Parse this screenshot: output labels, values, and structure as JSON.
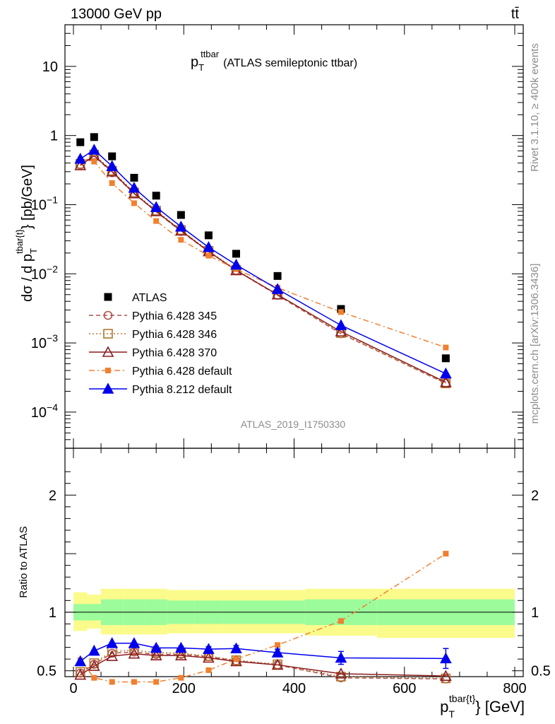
{
  "header": {
    "left": "13000 GeV pp",
    "right": "tt̄"
  },
  "side_labels": {
    "rivet": "Rivet 3.1.10, ≥ 400k events",
    "mcplots": "mcplots.cern.ch [arXiv:1306.3436]"
  },
  "chart_data": [
    {
      "type": "line",
      "panel": "main",
      "title_main": "p",
      "title_sub": "T",
      "title_sup": "ttbar",
      "title_rest": "(ATLAS semileptonic ttbar)",
      "ylabel": "dσ / d p_T^{tbar{t}} [pb/GeV]",
      "watermark": "ATLAS_2019_I1750330",
      "yscale": "log",
      "ylim": [
        3e-05,
        40
      ],
      "xlim": [
        -20,
        820
      ],
      "yticks": [
        {
          "v": 10,
          "label": "10"
        },
        {
          "v": 1,
          "label": "1"
        },
        {
          "v": 0.1,
          "base": "10",
          "exp": "−1"
        },
        {
          "v": 0.01,
          "base": "10",
          "exp": "−2"
        },
        {
          "v": 0.001,
          "base": "10",
          "exp": "−3"
        },
        {
          "v": 0.0001,
          "base": "10",
          "exp": "−4"
        }
      ],
      "x": [
        12.5,
        37.5,
        70,
        110,
        150,
        195,
        245,
        295,
        370,
        485,
        675
      ],
      "series": [
        {
          "name": "ATLAS",
          "color": "#000000",
          "marker": "square",
          "line": "none",
          "values": [
            0.8,
            0.95,
            0.5,
            0.245,
            0.135,
            0.071,
            0.036,
            0.0195,
            0.0093,
            0.0031,
            0.0006
          ]
        },
        {
          "name": "Pythia 6.428 345",
          "color": "#b05050",
          "marker": "circle-open",
          "line": "dashed",
          "values": [
            0.375,
            0.51,
            0.29,
            0.145,
            0.079,
            0.041,
            0.021,
            0.0112,
            0.0049,
            0.00136,
            0.00026
          ]
        },
        {
          "name": "Pythia 6.428 346",
          "color": "#b07830",
          "marker": "square-open",
          "line": "dotted",
          "values": [
            0.39,
            0.53,
            0.31,
            0.15,
            0.082,
            0.043,
            0.0215,
            0.0114,
            0.005,
            0.00139,
            0.00026
          ]
        },
        {
          "name": "Pythia 6.428 370",
          "color": "#8c1c20",
          "marker": "triangle-open",
          "line": "solid",
          "values": [
            0.37,
            0.51,
            0.3,
            0.145,
            0.08,
            0.042,
            0.021,
            0.0112,
            0.005,
            0.00146,
            0.00027
          ]
        },
        {
          "name": "Pythia 6.428 default",
          "color": "#f08030",
          "marker": "square-small",
          "line": "dashdot",
          "values": [
            0.45,
            0.42,
            0.205,
            0.105,
            0.058,
            0.031,
            0.0183,
            0.0117,
            0.0063,
            0.0028,
            0.00086
          ]
        },
        {
          "name": "Pythia 8.212 default",
          "color": "#0000ee",
          "marker": "triangle",
          "line": "solid",
          "values": [
            0.46,
            0.62,
            0.36,
            0.175,
            0.092,
            0.048,
            0.0242,
            0.0135,
            0.006,
            0.0018,
            0.00036
          ]
        }
      ]
    },
    {
      "type": "line",
      "panel": "ratio",
      "ylabel": "Ratio to ATLAS",
      "xlabel_main": "p",
      "xlabel_sub": "T",
      "xlabel_sup": "tbar{t}",
      "xlabel_rest": "} [GeV]",
      "ylim": [
        0.45,
        2.4
      ],
      "yticks": [
        {
          "v": 0.5,
          "label": "0.5"
        },
        {
          "v": 1,
          "label": "1"
        },
        {
          "v": 2,
          "label": "2"
        }
      ],
      "xticks": [
        {
          "v": 0,
          "label": "0"
        },
        {
          "v": 200,
          "label": "200"
        },
        {
          "v": 400,
          "label": "400"
        },
        {
          "v": 600,
          "label": "600"
        },
        {
          "v": 800,
          "label": "800"
        }
      ],
      "bands": [
        {
          "x0": 0,
          "x1": 25,
          "yellow": [
            0.84,
            1.17
          ],
          "green": [
            0.93,
            1.07
          ]
        },
        {
          "x0": 25,
          "x1": 50,
          "yellow": [
            0.86,
            1.15
          ],
          "green": [
            0.93,
            1.07
          ]
        },
        {
          "x0": 50,
          "x1": 90,
          "yellow": [
            0.81,
            1.2
          ],
          "green": [
            0.89,
            1.11
          ]
        },
        {
          "x0": 90,
          "x1": 130,
          "yellow": [
            0.81,
            1.2
          ],
          "green": [
            0.89,
            1.11
          ]
        },
        {
          "x0": 130,
          "x1": 170,
          "yellow": [
            0.81,
            1.2
          ],
          "green": [
            0.89,
            1.11
          ]
        },
        {
          "x0": 170,
          "x1": 220,
          "yellow": [
            0.82,
            1.19
          ],
          "green": [
            0.9,
            1.1
          ]
        },
        {
          "x0": 220,
          "x1": 270,
          "yellow": [
            0.82,
            1.19
          ],
          "green": [
            0.9,
            1.1
          ]
        },
        {
          "x0": 270,
          "x1": 320,
          "yellow": [
            0.82,
            1.19
          ],
          "green": [
            0.9,
            1.1
          ]
        },
        {
          "x0": 320,
          "x1": 420,
          "yellow": [
            0.82,
            1.19
          ],
          "green": [
            0.9,
            1.1
          ]
        },
        {
          "x0": 420,
          "x1": 550,
          "yellow": [
            0.8,
            1.2
          ],
          "green": [
            0.89,
            1.11
          ]
        },
        {
          "x0": 550,
          "x1": 800,
          "yellow": [
            0.78,
            1.2
          ],
          "green": [
            0.89,
            1.11
          ]
        }
      ],
      "series": [
        {
          "name": "Pythia 6.428 345",
          "color": "#b05050",
          "marker": "circle-open",
          "line": "dashed",
          "values": [
            0.48,
            0.555,
            0.65,
            0.66,
            0.64,
            0.64,
            0.62,
            0.585,
            0.55,
            0.44,
            0.43
          ]
        },
        {
          "name": "Pythia 6.428 346",
          "color": "#b07830",
          "marker": "square-open",
          "line": "dotted",
          "values": [
            0.49,
            0.565,
            0.665,
            0.675,
            0.655,
            0.65,
            0.625,
            0.59,
            0.555,
            0.45,
            0.435
          ]
        },
        {
          "name": "Pythia 6.428 370",
          "color": "#8c1c20",
          "marker": "triangle-open",
          "line": "solid",
          "values": [
            0.465,
            0.54,
            0.625,
            0.645,
            0.63,
            0.63,
            0.61,
            0.58,
            0.55,
            0.475,
            0.455
          ]
        },
        {
          "name": "Pythia 6.428 default",
          "color": "#f08030",
          "marker": "square-small",
          "line": "dashdot",
          "values": [
            0.59,
            0.44,
            0.405,
            0.405,
            0.405,
            0.44,
            0.505,
            0.6,
            0.72,
            0.925,
            1.5
          ]
        },
        {
          "name": "Pythia 8.212 default",
          "color": "#0000ee",
          "marker": "triangle",
          "line": "solid",
          "values": [
            0.58,
            0.67,
            0.735,
            0.735,
            0.695,
            0.695,
            0.685,
            0.69,
            0.655,
            0.61,
            0.605
          ],
          "errors": [
            0,
            0,
            0,
            0,
            0.015,
            0.015,
            0.02,
            0.025,
            0.03,
            0.055,
            0.085
          ]
        }
      ]
    }
  ]
}
